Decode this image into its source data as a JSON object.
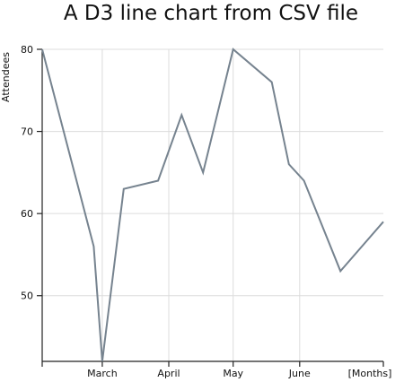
{
  "chart_data": {
    "type": "line",
    "title": "A D3 line chart from CSV file",
    "xlabel": "[Months]",
    "ylabel": "Attendees",
    "grid": true,
    "x_ticks": [
      {
        "label": "March",
        "date": "2013-03-01"
      },
      {
        "label": "April",
        "date": "2013-04-01"
      },
      {
        "label": "May",
        "date": "2013-05-01"
      },
      {
        "label": "June",
        "date": "2013-06-01"
      }
    ],
    "x_range": [
      "2013-02-01",
      "2013-07-10"
    ],
    "y_ticks": [
      50,
      60,
      70,
      80
    ],
    "ylim": [
      42,
      80
    ],
    "series": [
      {
        "color": "#76838f",
        "points": [
          {
            "x": "2013-02-01",
            "y": 80
          },
          {
            "x": "2013-02-25",
            "y": 56
          },
          {
            "x": "2013-03-01",
            "y": 42
          },
          {
            "x": "2013-03-11",
            "y": 63
          },
          {
            "x": "2013-03-27",
            "y": 64
          },
          {
            "x": "2013-04-07",
            "y": 72
          },
          {
            "x": "2013-04-17",
            "y": 65
          },
          {
            "x": "2013-05-01",
            "y": 80
          },
          {
            "x": "2013-05-19",
            "y": 76
          },
          {
            "x": "2013-05-27",
            "y": 66
          },
          {
            "x": "2013-06-03",
            "y": 64
          },
          {
            "x": "2013-06-20",
            "y": 53
          },
          {
            "x": "2013-07-10",
            "y": 59
          }
        ]
      }
    ]
  }
}
